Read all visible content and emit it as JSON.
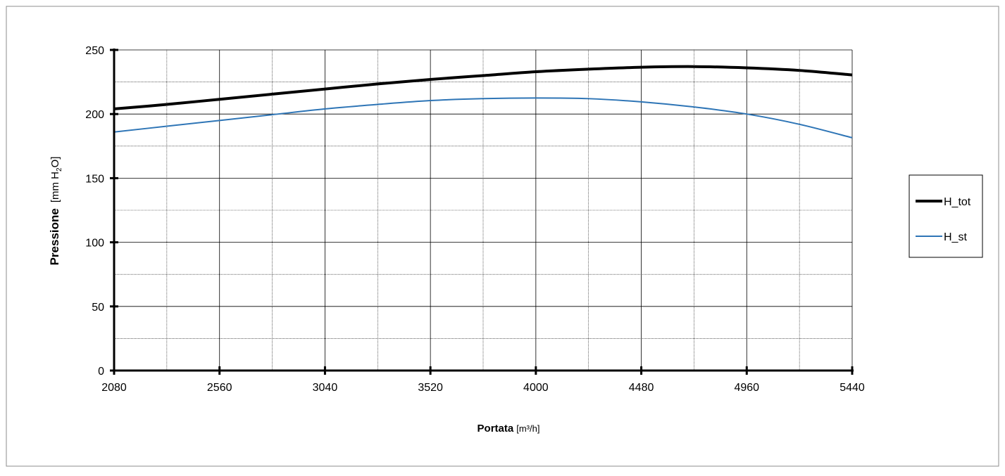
{
  "chart_data": {
    "type": "line",
    "title": "",
    "xlabel": {
      "bold": "Portata",
      "unit": "[m³/h]"
    },
    "ylabel": {
      "bold": "Pressione",
      "unit_prefix": "[mm H",
      "unit_sub": "2",
      "unit_suffix": "O]"
    },
    "xlim": [
      2080,
      5440
    ],
    "ylim": [
      0,
      250
    ],
    "x_ticks": [
      2080,
      2560,
      3040,
      3520,
      4000,
      4480,
      4960,
      5440
    ],
    "y_ticks": [
      0,
      50,
      100,
      150,
      200,
      250
    ],
    "x_minor_step": 240,
    "y_minor_step": 25,
    "grid": true,
    "legend_position": "right",
    "series": [
      {
        "name": "H_tot",
        "color": "#000000",
        "x": [
          2080,
          2320,
          2560,
          2800,
          3040,
          3280,
          3520,
          3760,
          4000,
          4240,
          4480,
          4720,
          4960,
          5200,
          5440
        ],
        "y": [
          204,
          207.5,
          211.5,
          215.5,
          219.5,
          223.5,
          227,
          230,
          233,
          235,
          236.5,
          237,
          236,
          234,
          230.5
        ]
      },
      {
        "name": "H_st",
        "color": "#2E75B6",
        "x": [
          2080,
          2320,
          2560,
          2800,
          3040,
          3280,
          3520,
          3760,
          4000,
          4240,
          4480,
          4720,
          4960,
          5200,
          5440
        ],
        "y": [
          186,
          190.5,
          195,
          199.5,
          204,
          207.5,
          210.5,
          212,
          212.5,
          212,
          209.5,
          205.5,
          200,
          192,
          181.5
        ]
      }
    ]
  }
}
